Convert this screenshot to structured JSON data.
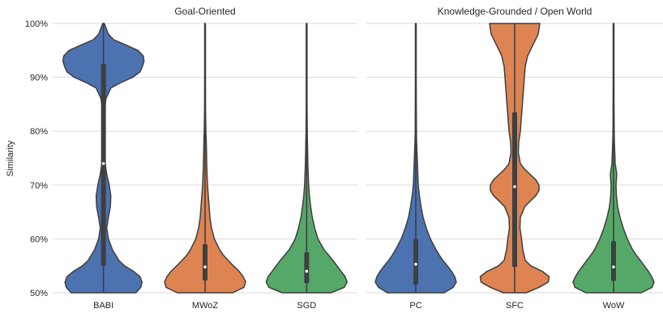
{
  "colors": {
    "blue": "#4c72b0",
    "orange": "#dd8452",
    "green": "#55a868",
    "grid": "#d9d9d9",
    "outline": "#3f3f3f",
    "box": "#3f3f3f"
  },
  "chart_data": {
    "type": "violin",
    "ylabel": "Similarity",
    "ylim": [
      50,
      100
    ],
    "y_ticks": [
      50,
      60,
      70,
      80,
      90,
      100
    ],
    "y_tick_labels": [
      "50%",
      "60%",
      "70%",
      "80%",
      "90%",
      "100%"
    ],
    "grid": true,
    "panels": [
      {
        "title": "Goal-Oriented",
        "categories": [
          {
            "label": "BABI",
            "color": "blue",
            "median": 74,
            "q1": 55,
            "q3": 92.5,
            "profile": [
              [
                50,
                0.8
              ],
              [
                51,
                0.92
              ],
              [
                52,
                0.95
              ],
              [
                53,
                0.9
              ],
              [
                54,
                0.74
              ],
              [
                55,
                0.52
              ],
              [
                56,
                0.38
              ],
              [
                58,
                0.22
              ],
              [
                60,
                0.12
              ],
              [
                62,
                0.08
              ],
              [
                64,
                0.12
              ],
              [
                66,
                0.17
              ],
              [
                68,
                0.18
              ],
              [
                70,
                0.14
              ],
              [
                72,
                0.08
              ],
              [
                74,
                0.04
              ],
              [
                76,
                0.03
              ],
              [
                78,
                0.04
              ],
              [
                80,
                0.03
              ],
              [
                82,
                0.03
              ],
              [
                84,
                0.03
              ],
              [
                86,
                0.06
              ],
              [
                88,
                0.18
              ],
              [
                89,
                0.42
              ],
              [
                90,
                0.72
              ],
              [
                91,
                0.9
              ],
              [
                92,
                0.96
              ],
              [
                93,
                1.0
              ],
              [
                94,
                0.98
              ],
              [
                95,
                0.85
              ],
              [
                96,
                0.55
              ],
              [
                97,
                0.25
              ],
              [
                98,
                0.12
              ],
              [
                99,
                0.07
              ],
              [
                100,
                0.02
              ]
            ]
          },
          {
            "label": "MWoZ",
            "color": "orange",
            "median": 54.8,
            "q1": 52.3,
            "q3": 59,
            "profile": [
              [
                50,
                0.68
              ],
              [
                51,
                0.96
              ],
              [
                52,
                1.0
              ],
              [
                53,
                0.94
              ],
              [
                54,
                0.84
              ],
              [
                55,
                0.7
              ],
              [
                56,
                0.57
              ],
              [
                57,
                0.45
              ],
              [
                58,
                0.36
              ],
              [
                60,
                0.23
              ],
              [
                62,
                0.16
              ],
              [
                64,
                0.12
              ],
              [
                66,
                0.1
              ],
              [
                68,
                0.08
              ],
              [
                70,
                0.06
              ],
              [
                72,
                0.05
              ],
              [
                74,
                0.04
              ],
              [
                76,
                0.035
              ],
              [
                78,
                0.03
              ],
              [
                80,
                0.02
              ],
              [
                84,
                0.012
              ],
              [
                90,
                0.01
              ],
              [
                95,
                0.01
              ],
              [
                100,
                0.01
              ]
            ]
          },
          {
            "label": "SGD",
            "color": "green",
            "median": 54,
            "q1": 51.8,
            "q3": 57.5,
            "profile": [
              [
                50,
                0.6
              ],
              [
                51,
                0.93
              ],
              [
                52,
                1.0
              ],
              [
                53,
                0.95
              ],
              [
                54,
                0.85
              ],
              [
                55,
                0.75
              ],
              [
                56,
                0.65
              ],
              [
                57,
                0.54
              ],
              [
                58,
                0.43
              ],
              [
                60,
                0.28
              ],
              [
                62,
                0.2
              ],
              [
                64,
                0.14
              ],
              [
                66,
                0.1
              ],
              [
                68,
                0.07
              ],
              [
                70,
                0.05
              ],
              [
                72,
                0.04
              ],
              [
                74,
                0.03
              ],
              [
                76,
                0.025
              ],
              [
                78,
                0.02
              ],
              [
                80,
                0.015
              ],
              [
                85,
                0.01
              ],
              [
                90,
                0.01
              ],
              [
                95,
                0.01
              ],
              [
                100,
                0.01
              ]
            ]
          }
        ]
      },
      {
        "title": "Knowledge-Grounded / Open World",
        "categories": [
          {
            "label": "PC",
            "color": "blue",
            "median": 55.3,
            "q1": 51.5,
            "q3": 60,
            "profile": [
              [
                50,
                0.7
              ],
              [
                51,
                0.92
              ],
              [
                52,
                1.0
              ],
              [
                53,
                0.96
              ],
              [
                54,
                0.88
              ],
              [
                55,
                0.78
              ],
              [
                56,
                0.67
              ],
              [
                57,
                0.58
              ],
              [
                58,
                0.5
              ],
              [
                60,
                0.36
              ],
              [
                62,
                0.26
              ],
              [
                64,
                0.18
              ],
              [
                66,
                0.13
              ],
              [
                68,
                0.09
              ],
              [
                70,
                0.06
              ],
              [
                72,
                0.05
              ],
              [
                74,
                0.04
              ],
              [
                76,
                0.03
              ],
              [
                78,
                0.02
              ],
              [
                80,
                0.015
              ],
              [
                85,
                0.012
              ],
              [
                90,
                0.01
              ],
              [
                95,
                0.01
              ],
              [
                100,
                0.01
              ]
            ]
          },
          {
            "label": "SFC",
            "color": "orange",
            "median": 69.7,
            "q1": 54.8,
            "q3": 83.5,
            "profile": [
              [
                50,
                0.28
              ],
              [
                51,
                0.6
              ],
              [
                52,
                0.83
              ],
              [
                53,
                0.85
              ],
              [
                54,
                0.68
              ],
              [
                55,
                0.4
              ],
              [
                56,
                0.26
              ],
              [
                58,
                0.2
              ],
              [
                60,
                0.17
              ],
              [
                62,
                0.13
              ],
              [
                64,
                0.14
              ],
              [
                66,
                0.25
              ],
              [
                67,
                0.38
              ],
              [
                68,
                0.52
              ],
              [
                69,
                0.6
              ],
              [
                70,
                0.6
              ],
              [
                71,
                0.52
              ],
              [
                72,
                0.38
              ],
              [
                73,
                0.24
              ],
              [
                74,
                0.14
              ],
              [
                76,
                0.09
              ],
              [
                78,
                0.1
              ],
              [
                80,
                0.14
              ],
              [
                82,
                0.16
              ],
              [
                84,
                0.18
              ],
              [
                86,
                0.2
              ],
              [
                88,
                0.22
              ],
              [
                90,
                0.24
              ],
              [
                92,
                0.26
              ],
              [
                94,
                0.32
              ],
              [
                96,
                0.45
              ],
              [
                98,
                0.58
              ],
              [
                100,
                0.62
              ]
            ]
          },
          {
            "label": "WoW",
            "color": "green",
            "median": 54.8,
            "q1": 52.2,
            "q3": 59.6,
            "profile": [
              [
                50,
                0.68
              ],
              [
                51,
                0.95
              ],
              [
                52,
                1.0
              ],
              [
                53,
                0.94
              ],
              [
                54,
                0.86
              ],
              [
                55,
                0.76
              ],
              [
                56,
                0.66
              ],
              [
                57,
                0.56
              ],
              [
                58,
                0.47
              ],
              [
                60,
                0.34
              ],
              [
                62,
                0.24
              ],
              [
                64,
                0.16
              ],
              [
                66,
                0.1
              ],
              [
                68,
                0.07
              ],
              [
                70,
                0.06
              ],
              [
                72,
                0.08
              ],
              [
                73,
                0.06
              ],
              [
                74,
                0.04
              ],
              [
                76,
                0.03
              ],
              [
                78,
                0.02
              ],
              [
                80,
                0.015
              ],
              [
                84,
                0.012
              ],
              [
                90,
                0.01
              ],
              [
                95,
                0.01
              ],
              [
                100,
                0.01
              ]
            ]
          }
        ]
      }
    ]
  }
}
